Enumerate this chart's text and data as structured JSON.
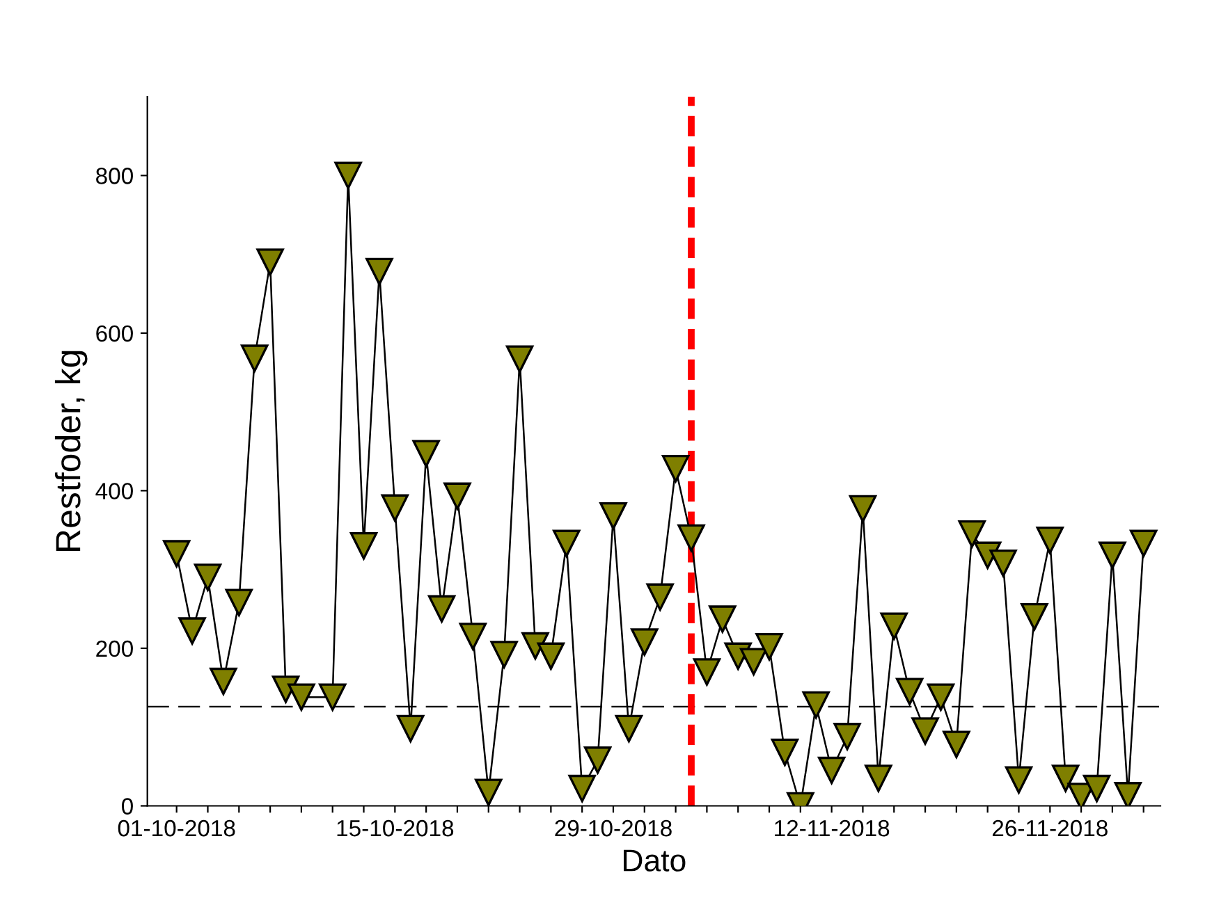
{
  "chart_data": {
    "type": "line",
    "xlabel": "Dato",
    "ylabel": "Restfoder, kg",
    "x": [
      "2018-10-01",
      "2018-10-02",
      "2018-10-03",
      "2018-10-04",
      "2018-10-05",
      "2018-10-06",
      "2018-10-07",
      "2018-10-08",
      "2018-10-09",
      "2018-10-11",
      "2018-10-12",
      "2018-10-13",
      "2018-10-14",
      "2018-10-15",
      "2018-10-16",
      "2018-10-17",
      "2018-10-18",
      "2018-10-19",
      "2018-10-20",
      "2018-10-21",
      "2018-10-22",
      "2018-10-23",
      "2018-10-24",
      "2018-10-25",
      "2018-10-26",
      "2018-10-27",
      "2018-10-28",
      "2018-10-29",
      "2018-10-30",
      "2018-10-31",
      "2018-11-01",
      "2018-11-02",
      "2018-11-03",
      "2018-11-04",
      "2018-11-05",
      "2018-11-06",
      "2018-11-07",
      "2018-11-08",
      "2018-11-09",
      "2018-11-10",
      "2018-11-11",
      "2018-11-12",
      "2018-11-13",
      "2018-11-14",
      "2018-11-15",
      "2018-11-16",
      "2018-11-17",
      "2018-11-18",
      "2018-11-19",
      "2018-11-20",
      "2018-11-21",
      "2018-11-22",
      "2018-11-23",
      "2018-11-24",
      "2018-11-25",
      "2018-11-26",
      "2018-11-27",
      "2018-11-28",
      "2018-11-29",
      "2018-11-30",
      "2018-12-01",
      "2018-12-02"
    ],
    "series": [
      {
        "color": "#7f7f00",
        "values": [
          320,
          222,
          290,
          158,
          258,
          568,
          690,
          148,
          138,
          138,
          800,
          330,
          678,
          378,
          98,
          447,
          250,
          393,
          215,
          17,
          192,
          567,
          203,
          190,
          333,
          22,
          58,
          368,
          98,
          208,
          265,
          428,
          340,
          170,
          237,
          190,
          183,
          202,
          68,
          0,
          128,
          45,
          88,
          377,
          35,
          228,
          145,
          95,
          138,
          78,
          345,
          318,
          308,
          33,
          240,
          337,
          35,
          12,
          22,
          318,
          13,
          333
        ]
      }
    ],
    "marker": "triangle",
    "xlim": [
      "2018-09-29T03:00",
      "2018-12-03T02:00"
    ],
    "xticks": [
      {
        "value": "2018-10-01",
        "label": "01-10-2018"
      },
      {
        "value": "2018-10-03",
        "label": null
      },
      {
        "value": "2018-10-05",
        "label": null
      },
      {
        "value": "2018-10-07",
        "label": null
      },
      {
        "value": "2018-10-09",
        "label": null
      },
      {
        "value": "2018-10-11",
        "label": null
      },
      {
        "value": "2018-10-13",
        "label": null
      },
      {
        "value": "2018-10-15",
        "label": "15-10-2018"
      },
      {
        "value": "2018-10-17",
        "label": null
      },
      {
        "value": "2018-10-19",
        "label": null
      },
      {
        "value": "2018-10-21",
        "label": null
      },
      {
        "value": "2018-10-23",
        "label": null
      },
      {
        "value": "2018-10-25",
        "label": null
      },
      {
        "value": "2018-10-27",
        "label": null
      },
      {
        "value": "2018-10-29",
        "label": "29-10-2018"
      },
      {
        "value": "2018-10-31",
        "label": null
      },
      {
        "value": "2018-11-02",
        "label": null
      },
      {
        "value": "2018-11-04",
        "label": null
      },
      {
        "value": "2018-11-06",
        "label": null
      },
      {
        "value": "2018-11-08",
        "label": null
      },
      {
        "value": "2018-11-10",
        "label": null
      },
      {
        "value": "2018-11-12",
        "label": "12-11-2018"
      },
      {
        "value": "2018-11-14",
        "label": null
      },
      {
        "value": "2018-11-16",
        "label": null
      },
      {
        "value": "2018-11-18",
        "label": null
      },
      {
        "value": "2018-11-20",
        "label": null
      },
      {
        "value": "2018-11-22",
        "label": null
      },
      {
        "value": "2018-11-24",
        "label": null
      },
      {
        "value": "2018-11-26",
        "label": "26-11-2018"
      },
      {
        "value": "2018-11-28",
        "label": null
      },
      {
        "value": "2018-11-30",
        "label": null
      },
      {
        "value": "2018-12-02",
        "label": null
      }
    ],
    "ylim": [
      0,
      900
    ],
    "yticks": [
      0,
      200,
      400,
      600,
      800
    ],
    "ref_lines": [
      {
        "axis": "y",
        "value": 126,
        "color": "#000000",
        "line_style": "dashed"
      },
      {
        "axis": "x",
        "value": "2018-11-03",
        "color": "#ff0000",
        "line_style": "dashed"
      }
    ],
    "grid": false,
    "legend": false
  }
}
